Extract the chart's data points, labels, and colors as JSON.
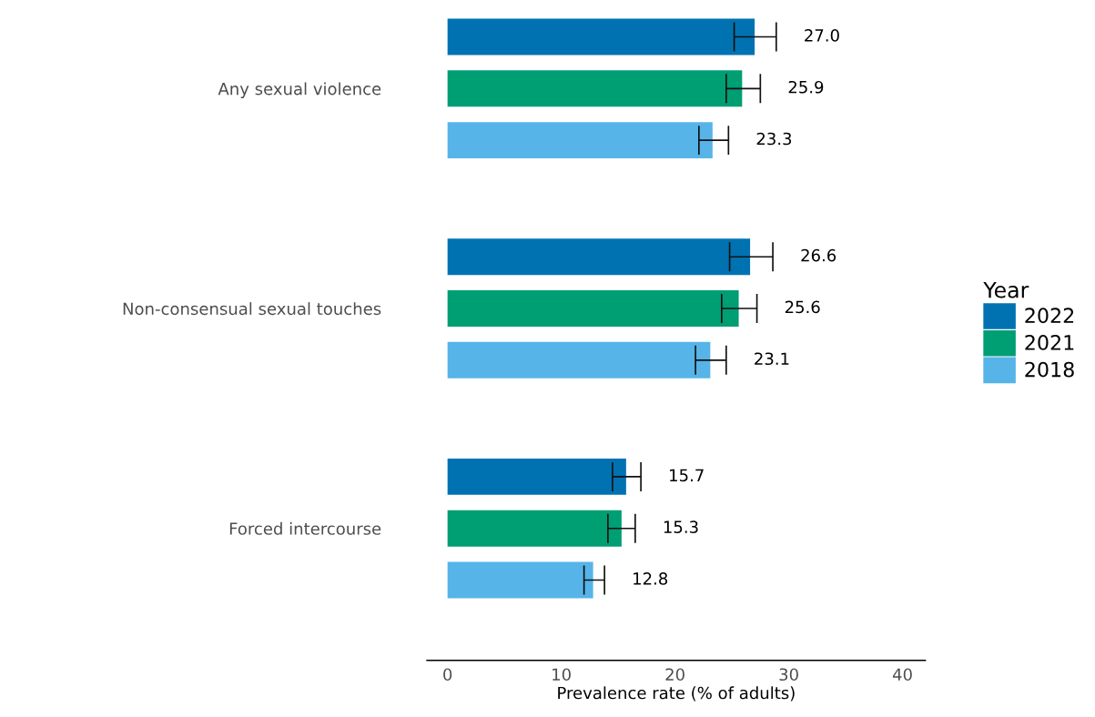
{
  "chart_data": {
    "type": "bar",
    "orientation": "horizontal",
    "xlabel": "Prevalence rate (% of adults)",
    "legend_title": "Year",
    "legend": "right",
    "grid": false,
    "data_labels": true,
    "categories": [
      "Any sexual violence",
      "Non-consensual sexual touches",
      "Forced intercourse"
    ],
    "xlim": [
      -1.8,
      42
    ],
    "xticks": [
      0,
      10,
      20,
      30,
      40
    ],
    "series": [
      {
        "name": "2022",
        "color": "#0072b2",
        "values": [
          27.0,
          26.6,
          15.7
        ],
        "value_labels": [
          "27.0",
          "26.6",
          "15.7"
        ],
        "errors": [
          [
            25.2,
            28.9
          ],
          [
            24.8,
            28.6
          ],
          [
            14.5,
            17.0
          ]
        ]
      },
      {
        "name": "2021",
        "color": "#009e73",
        "values": [
          25.9,
          25.6,
          15.3
        ],
        "value_labels": [
          "25.9",
          "25.6",
          "15.3"
        ],
        "errors": [
          [
            24.5,
            27.5
          ],
          [
            24.1,
            27.2
          ],
          [
            14.1,
            16.5
          ]
        ]
      },
      {
        "name": "2018",
        "color": "#56b4e9",
        "values": [
          23.3,
          23.1,
          12.8
        ],
        "value_labels": [
          "23.3",
          "23.1",
          "12.8"
        ],
        "errors": [
          [
            22.1,
            24.7
          ],
          [
            21.8,
            24.5
          ],
          [
            12.0,
            13.8
          ]
        ]
      }
    ]
  }
}
